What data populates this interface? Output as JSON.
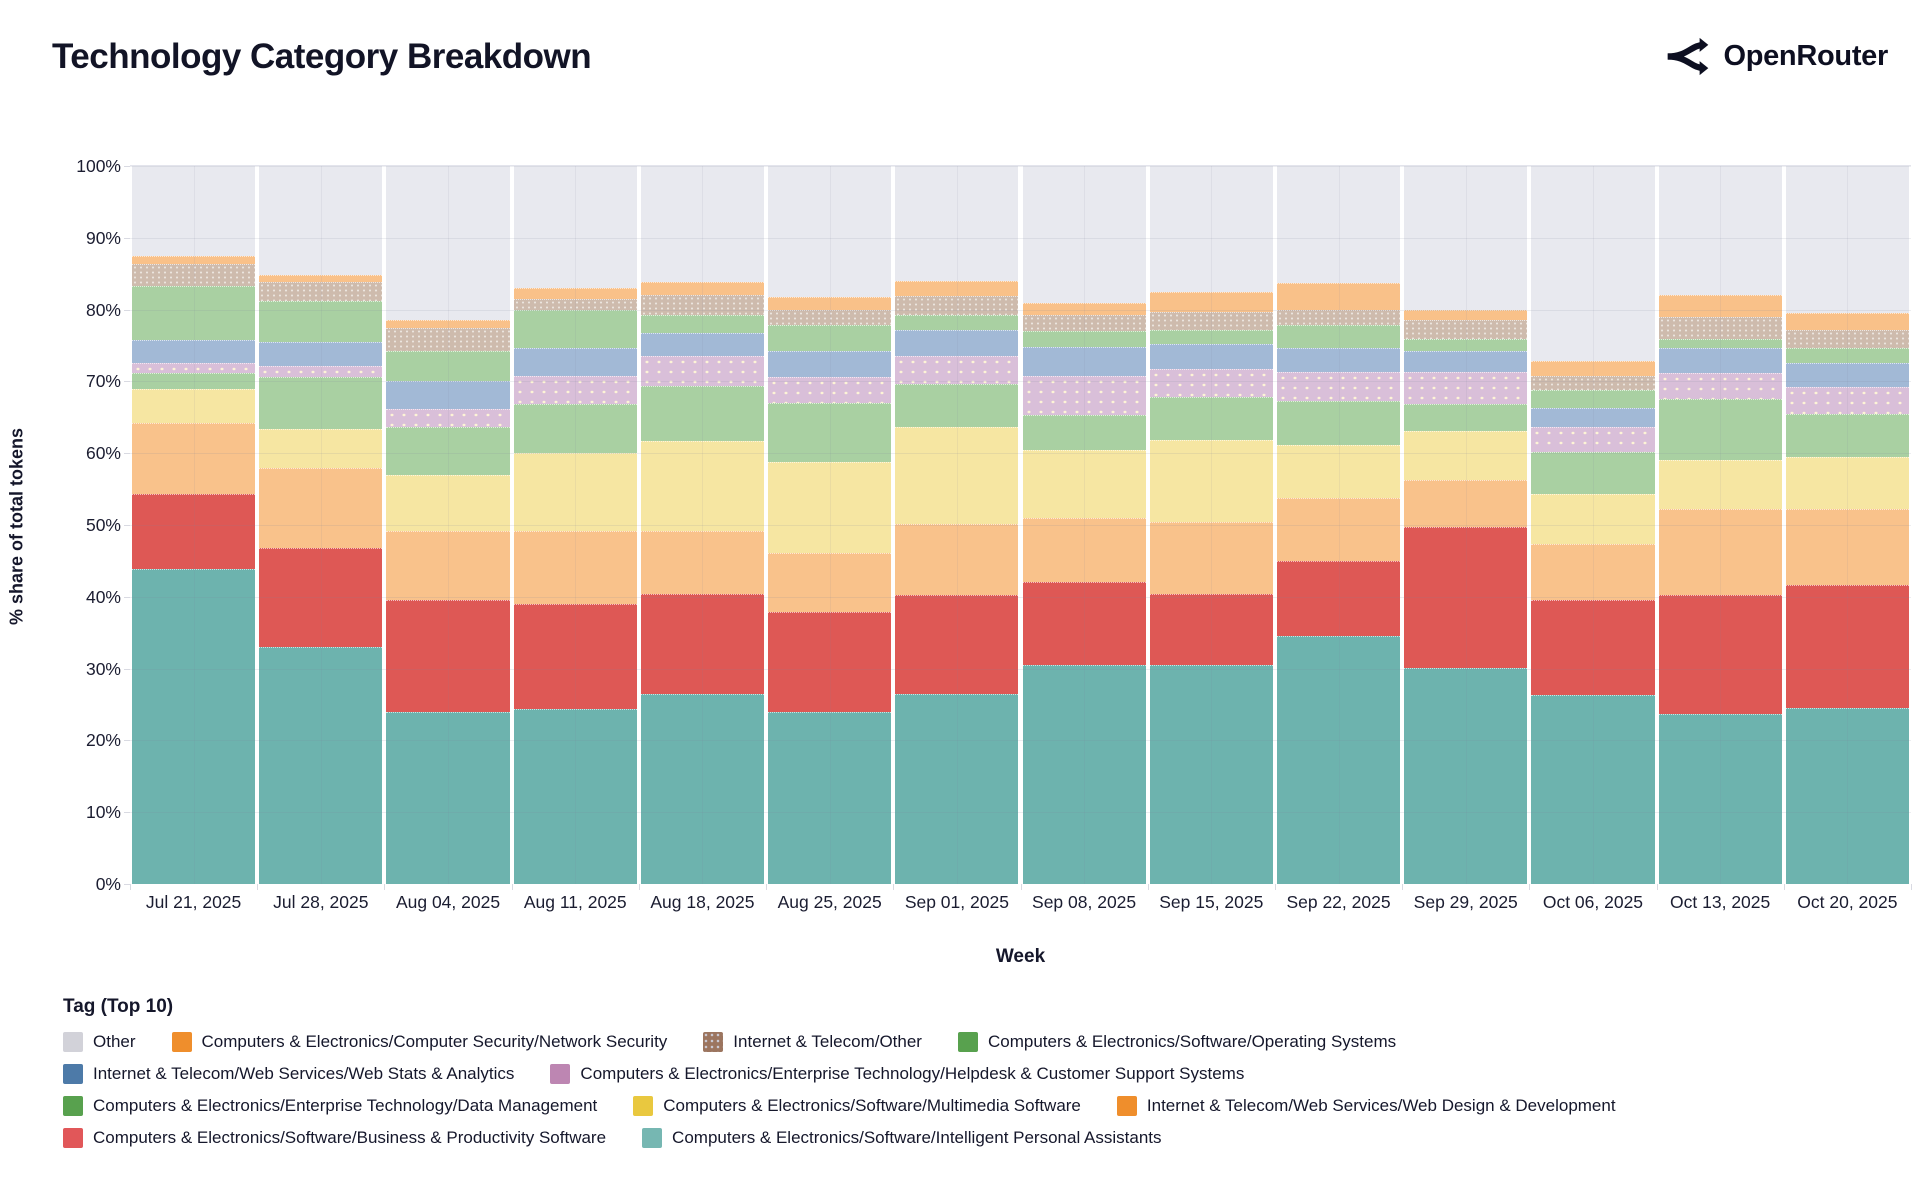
{
  "header": {
    "title": "Technology Category Breakdown",
    "brand": "OpenRouter"
  },
  "chart_data": {
    "type": "bar",
    "stacked": true,
    "normalized": "percent",
    "title": "Technology Category Breakdown",
    "xlabel": "Week",
    "ylabel": "% share of total tokens",
    "ylim": [
      0,
      100
    ],
    "grid": true,
    "yticks": [
      0,
      10,
      20,
      30,
      40,
      50,
      60,
      70,
      80,
      90,
      100
    ],
    "ytick_labels": [
      "0%",
      "10%",
      "20%",
      "30%",
      "40%",
      "50%",
      "60%",
      "70%",
      "80%",
      "90%",
      "100%"
    ],
    "x": [
      "Jul 21, 2025",
      "Jul 28, 2025",
      "Aug 04, 2025",
      "Aug 11, 2025",
      "Aug 18, 2025",
      "Aug 25, 2025",
      "Sep 01, 2025",
      "Sep 08, 2025",
      "Sep 15, 2025",
      "Sep 22, 2025",
      "Sep 29, 2025",
      "Oct 06, 2025",
      "Oct 13, 2025",
      "Oct 20, 2025"
    ],
    "series": [
      {
        "key": "ipa",
        "name": "Computers & Electronics/Software/Intelligent Personal Assistants",
        "bar_color": "#6db3ae",
        "legend_color": "#76b7b2",
        "pattern": false,
        "values": [
          43.8,
          33.0,
          24.0,
          24.3,
          26.5,
          23.9,
          26.4,
          30.5,
          30.5,
          34.6,
          30.1,
          26.3,
          23.7,
          24.5
        ]
      },
      {
        "key": "bps",
        "name": "Computers & Electronics/Software/Business & Productivity Software",
        "bar_color": "#de5855",
        "legend_color": "#e15759",
        "pattern": false,
        "values": [
          10.5,
          13.8,
          15.5,
          14.7,
          13.9,
          14.0,
          13.8,
          11.6,
          9.9,
          10.4,
          19.6,
          13.3,
          16.5,
          17.2
        ]
      },
      {
        "key": "webdesign",
        "name": "Internet & Telecom/Web Services/Web Design & Development",
        "bar_color": "#f9c28b",
        "legend_color": "#ef8e2c",
        "pattern": false,
        "values": [
          9.9,
          11.2,
          9.7,
          10.2,
          8.8,
          8.2,
          10.0,
          8.8,
          10.0,
          8.7,
          6.6,
          7.8,
          12.0,
          10.5
        ]
      },
      {
        "key": "multimedia",
        "name": "Computers & Electronics/Software/Multimedia Software",
        "bar_color": "#f6e6a2",
        "legend_color": "#e9c83f",
        "pattern": false,
        "values": [
          4.8,
          5.4,
          7.7,
          10.8,
          12.5,
          12.7,
          13.5,
          9.5,
          11.5,
          7.4,
          6.8,
          6.9,
          6.8,
          7.3
        ]
      },
      {
        "key": "datamgmt",
        "name": "Computers & Electronics/Enterprise Technology/Data Management",
        "bar_color": "#a9d0a2",
        "legend_color": "#58a14e",
        "pattern": false,
        "values": [
          2.1,
          7.2,
          6.7,
          6.9,
          7.7,
          8.2,
          5.9,
          4.9,
          5.9,
          6.1,
          3.8,
          5.9,
          8.5,
          6.0
        ]
      },
      {
        "key": "helpdesk",
        "name": "Computers & Electronics/Enterprise Technology/Helpdesk & Customer Support Systems",
        "bar_color": "#d9bfd9",
        "legend_color": "#bd86b2",
        "pattern": true,
        "values": [
          1.5,
          1.6,
          2.6,
          3.9,
          4.2,
          3.6,
          3.9,
          5.5,
          3.9,
          4.1,
          4.4,
          3.4,
          3.6,
          3.7
        ]
      },
      {
        "key": "webstats",
        "name": "Internet & Telecom/Web Services/Web Stats & Analytics",
        "bar_color": "#a2b9d6",
        "legend_color": "#4d7aa8",
        "pattern": false,
        "values": [
          3.1,
          3.3,
          3.9,
          3.9,
          3.1,
          3.6,
          3.7,
          4.0,
          3.5,
          3.4,
          2.9,
          2.7,
          3.5,
          3.4
        ]
      },
      {
        "key": "os",
        "name": "Computers & Electronics/Software/Operating Systems",
        "bar_color": "#a9d0a2",
        "legend_color": "#58a14e",
        "pattern": false,
        "values": [
          7.6,
          5.7,
          4.1,
          5.3,
          2.5,
          3.6,
          2.1,
          2.2,
          1.9,
          3.1,
          1.7,
          2.5,
          1.3,
          2.0
        ]
      },
      {
        "key": "itother",
        "name": "Internet & Telecom/Other",
        "bar_color": "#cebbad",
        "legend_color": "#9c755f",
        "pattern": true,
        "values": [
          3.1,
          2.6,
          3.3,
          1.5,
          2.9,
          2.2,
          2.6,
          2.3,
          2.5,
          2.1,
          2.7,
          2.0,
          3.1,
          2.5
        ]
      },
      {
        "key": "netsec",
        "name": "Computers & Electronics/Computer Security/Network Security",
        "bar_color": "#f9c189",
        "legend_color": "#ef8e2c",
        "pattern": false,
        "values": [
          1.0,
          1.0,
          1.1,
          1.5,
          1.8,
          1.8,
          2.1,
          1.6,
          2.9,
          3.8,
          1.4,
          2.0,
          3.1,
          2.4
        ]
      },
      {
        "key": "other",
        "name": "Other",
        "bar_color": "#e8e9ef",
        "legend_color": "#d2d2d9",
        "pattern": false,
        "values": [
          12.6,
          15.2,
          21.4,
          17.0,
          16.1,
          18.2,
          16.0,
          19.1,
          17.5,
          16.3,
          20.0,
          27.2,
          17.9,
          20.5
        ]
      }
    ],
    "legend": {
      "title": "Tag (Top 10)",
      "position": "bottom",
      "rows": [
        [
          "other",
          "netsec",
          "itother",
          "os"
        ],
        [
          "webstats",
          "helpdesk"
        ],
        [
          "datamgmt",
          "multimedia",
          "webdesign"
        ],
        [
          "bps",
          "ipa"
        ]
      ]
    }
  }
}
